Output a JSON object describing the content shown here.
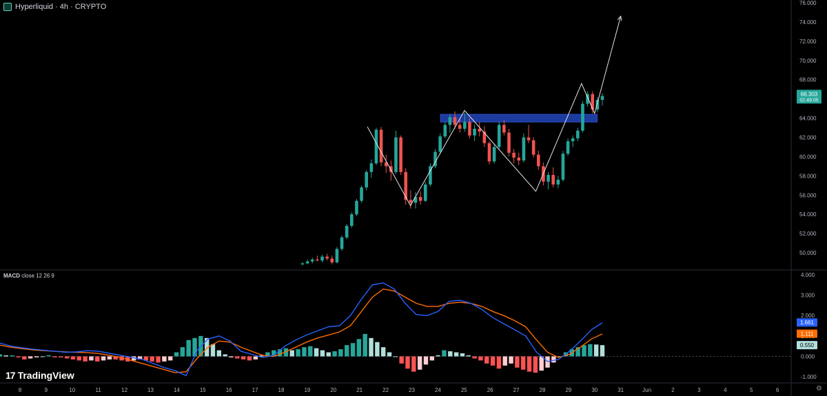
{
  "header": {
    "title": "Hyperliquid · 4h · CRYPTO",
    "icon": "hyperliquid-logo-icon"
  },
  "macd_label": {
    "name": "MACD",
    "params": "close 12 26 9"
  },
  "brand": "TradingView",
  "colors": {
    "up": "#26a69a",
    "down": "#ef5350",
    "macd_line": "#2962ff",
    "signal_line": "#ff6d00",
    "zone": "#1e3fa8",
    "hist_up_strong": "#26a69a",
    "hist_up_weak": "#b2dfdb",
    "hist_down_strong": "#ff5252",
    "hist_down_weak": "#ffcdd2"
  },
  "chart_data": [
    {
      "type": "candlestick",
      "title": "Hyperliquid · 4h · CRYPTO",
      "x_ticks": [
        "8",
        "9",
        "10",
        "11",
        "12",
        "13",
        "14",
        "15",
        "16",
        "17",
        "18",
        "19",
        "20",
        "21",
        "22",
        "23",
        "24",
        "25",
        "26",
        "27",
        "28",
        "29",
        "30",
        "31",
        "Jun",
        "2",
        "3",
        "4",
        "5",
        "6"
      ],
      "y_ticks": [
        "50.000",
        "52.000",
        "54.000",
        "56.000",
        "58.000",
        "60.000",
        "62.000",
        "64.000",
        "66.000",
        "68.000",
        "70.000",
        "72.000",
        "74.000",
        "76.000"
      ],
      "ylim": [
        48.5,
        76
      ],
      "last_price": "66.303",
      "countdown": "02:49:05",
      "candles_ohlc": [
        [
          48.8,
          49.0,
          48.7,
          48.9
        ],
        [
          48.9,
          49.3,
          48.8,
          49.1
        ],
        [
          49.1,
          49.5,
          48.9,
          49.3
        ],
        [
          49.3,
          49.7,
          49.1,
          49.2
        ],
        [
          49.2,
          49.8,
          49.0,
          49.6
        ],
        [
          49.6,
          49.9,
          49.2,
          49.4
        ],
        [
          49.4,
          49.7,
          48.8,
          49.0
        ],
        [
          49.0,
          50.6,
          48.9,
          50.4
        ],
        [
          50.4,
          51.8,
          50.2,
          51.6
        ],
        [
          51.6,
          53.0,
          51.4,
          52.8
        ],
        [
          52.8,
          54.2,
          52.6,
          54.0
        ],
        [
          54.0,
          55.6,
          53.8,
          55.4
        ],
        [
          55.4,
          57.0,
          55.2,
          56.8
        ],
        [
          56.8,
          58.6,
          56.5,
          58.4
        ],
        [
          58.4,
          59.7,
          57.8,
          59.3
        ],
        [
          59.3,
          63.0,
          59.1,
          62.8
        ],
        [
          62.8,
          63.1,
          59.0,
          59.4
        ],
        [
          59.4,
          60.2,
          58.3,
          59.0
        ],
        [
          59.0,
          59.6,
          57.5,
          58.4
        ],
        [
          58.4,
          62.7,
          58.2,
          62.0
        ],
        [
          62.0,
          62.2,
          58.1,
          58.4
        ],
        [
          58.4,
          58.8,
          55.0,
          55.5
        ],
        [
          55.5,
          56.5,
          54.6,
          55.2
        ],
        [
          55.2,
          56.3,
          54.6,
          55.8
        ],
        [
          55.8,
          56.4,
          55.0,
          55.4
        ],
        [
          55.4,
          57.4,
          55.3,
          57.1
        ],
        [
          57.1,
          59.3,
          56.9,
          59.0
        ],
        [
          59.0,
          60.8,
          58.8,
          60.5
        ],
        [
          60.5,
          62.4,
          60.3,
          62.1
        ],
        [
          62.1,
          63.6,
          61.9,
          63.3
        ],
        [
          63.3,
          64.4,
          62.5,
          64.1
        ],
        [
          64.1,
          64.7,
          62.9,
          63.3
        ],
        [
          63.3,
          63.9,
          62.5,
          62.9
        ],
        [
          62.9,
          64.6,
          62.6,
          63.6
        ],
        [
          63.6,
          64.0,
          61.9,
          62.2
        ],
        [
          62.2,
          63.3,
          61.6,
          62.9
        ],
        [
          62.9,
          63.6,
          62.1,
          62.6
        ],
        [
          62.6,
          63.2,
          61.0,
          61.4
        ],
        [
          61.4,
          61.6,
          59.2,
          59.5
        ],
        [
          59.5,
          61.3,
          59.3,
          61.0
        ],
        [
          61.0,
          63.6,
          60.8,
          63.3
        ],
        [
          63.3,
          63.8,
          62.2,
          62.5
        ],
        [
          62.5,
          62.9,
          60.0,
          60.4
        ],
        [
          60.4,
          60.8,
          59.3,
          59.9
        ],
        [
          59.9,
          60.4,
          59.1,
          59.6
        ],
        [
          59.6,
          62.4,
          59.4,
          62.0
        ],
        [
          62.0,
          63.3,
          61.4,
          61.7
        ],
        [
          61.7,
          62.0,
          59.9,
          60.2
        ],
        [
          60.2,
          60.6,
          58.6,
          59.0
        ],
        [
          59.0,
          59.4,
          57.0,
          57.4
        ],
        [
          57.4,
          58.4,
          56.6,
          58.1
        ],
        [
          58.1,
          58.9,
          56.8,
          57.1
        ],
        [
          57.1,
          58.0,
          56.7,
          57.6
        ],
        [
          57.6,
          60.6,
          57.4,
          60.3
        ],
        [
          60.3,
          61.9,
          60.1,
          61.6
        ],
        [
          61.6,
          62.2,
          61.0,
          61.9
        ],
        [
          61.9,
          63.0,
          61.6,
          62.7
        ],
        [
          62.7,
          65.8,
          62.5,
          65.5
        ],
        [
          65.5,
          66.8,
          65.2,
          66.5
        ],
        [
          66.5,
          66.8,
          64.5,
          64.9
        ],
        [
          64.9,
          66.2,
          64.6,
          65.9
        ],
        [
          65.9,
          66.6,
          65.3,
          66.3
        ]
      ],
      "x_start": 439,
      "x_end": 874,
      "annotations": {
        "zone": {
          "y_top": 64.4,
          "y_bottom": 63.6,
          "x_from": 24.1,
          "x_to": 30.1
        },
        "pattern_path": [
          [
            21.3,
            63.1
          ],
          [
            22.95,
            54.9
          ],
          [
            25.02,
            64.8
          ],
          [
            27.75,
            56.4
          ],
          [
            29.5,
            67.6
          ],
          [
            30.0,
            64.5
          ],
          [
            31.0,
            74.6
          ]
        ]
      }
    },
    {
      "type": "macd",
      "title": "MACD close 12 26 9",
      "y_ticks": [
        "-1.000",
        "0.000",
        "1.000",
        "2.000",
        "3.000",
        "4.000"
      ],
      "ylim": [
        -1.3,
        4.2
      ],
      "values": {
        "macd": "1.661",
        "signal": "1.111",
        "histogram": "0.550"
      },
      "macd_line": [
        0.65,
        0.5,
        0.42,
        0.35,
        0.3,
        0.25,
        0.2,
        0.22,
        0.28,
        0.25,
        0.15,
        0.05,
        -0.05,
        -0.15,
        -0.35,
        -0.55,
        -0.7,
        -0.95,
        0.3,
        0.85,
        1.0,
        0.75,
        0.25,
        0.1,
        -0.05,
        0.05,
        0.5,
        0.8,
        1.05,
        1.25,
        1.45,
        1.5,
        2.0,
        2.8,
        3.5,
        3.6,
        3.3,
        2.6,
        2.05,
        2.0,
        2.2,
        2.7,
        2.75,
        2.6,
        2.3,
        1.9,
        1.6,
        1.3,
        1.0,
        0.2,
        -0.25,
        -0.15,
        0.25,
        0.75,
        1.3,
        1.65
      ],
      "signal_line": [
        0.55,
        0.45,
        0.38,
        0.32,
        0.28,
        0.25,
        0.22,
        0.2,
        0.18,
        0.14,
        0.05,
        -0.05,
        -0.2,
        -0.35,
        -0.5,
        -0.65,
        -0.8,
        -0.75,
        -0.1,
        0.45,
        0.75,
        0.7,
        0.45,
        0.25,
        0.05,
        0.0,
        0.2,
        0.45,
        0.7,
        0.9,
        1.05,
        1.2,
        1.5,
        2.2,
        2.9,
        3.3,
        3.2,
        2.9,
        2.6,
        2.45,
        2.45,
        2.6,
        2.65,
        2.6,
        2.45,
        2.2,
        2.0,
        1.75,
        1.45,
        0.8,
        0.2,
        -0.05,
        0.1,
        0.45,
        0.85,
        1.1
      ],
      "histogram": [
        0.1,
        0.05,
        0.05,
        -0.05,
        -0.15,
        -0.1,
        -0.05,
        0.0,
        0.05,
        -0.05,
        -0.05,
        -0.1,
        -0.15,
        -0.2,
        -0.25,
        -0.2,
        -0.25,
        -0.2,
        -0.15,
        -0.15,
        -0.2,
        -0.25,
        -0.2,
        -0.15,
        -0.2,
        -0.25,
        -0.3,
        -0.25,
        -0.2,
        0.2,
        0.45,
        0.8,
        0.9,
        1.0,
        0.9,
        0.6,
        0.3,
        0.1,
        -0.05,
        -0.1,
        -0.15,
        -0.2,
        -0.15,
        0.05,
        0.2,
        0.3,
        0.35,
        0.4,
        0.3,
        0.35,
        0.45,
        0.5,
        0.4,
        0.3,
        0.2,
        0.25,
        0.35,
        0.55,
        0.65,
        0.85,
        1.1,
        0.9,
        0.7,
        0.45,
        0.2,
        0.0,
        -0.35,
        -0.6,
        -0.75,
        -0.65,
        -0.4,
        -0.2,
        0.05,
        0.3,
        0.25,
        0.2,
        0.15,
        0.05,
        -0.1,
        -0.2,
        -0.35,
        -0.45,
        -0.6,
        -0.45,
        -0.35,
        -0.55,
        -0.65,
        -0.75,
        -0.8,
        -0.7,
        -0.55,
        -0.3,
        0.0,
        0.2,
        0.35,
        0.45,
        0.55,
        0.6,
        0.58,
        0.55
      ]
    }
  ]
}
